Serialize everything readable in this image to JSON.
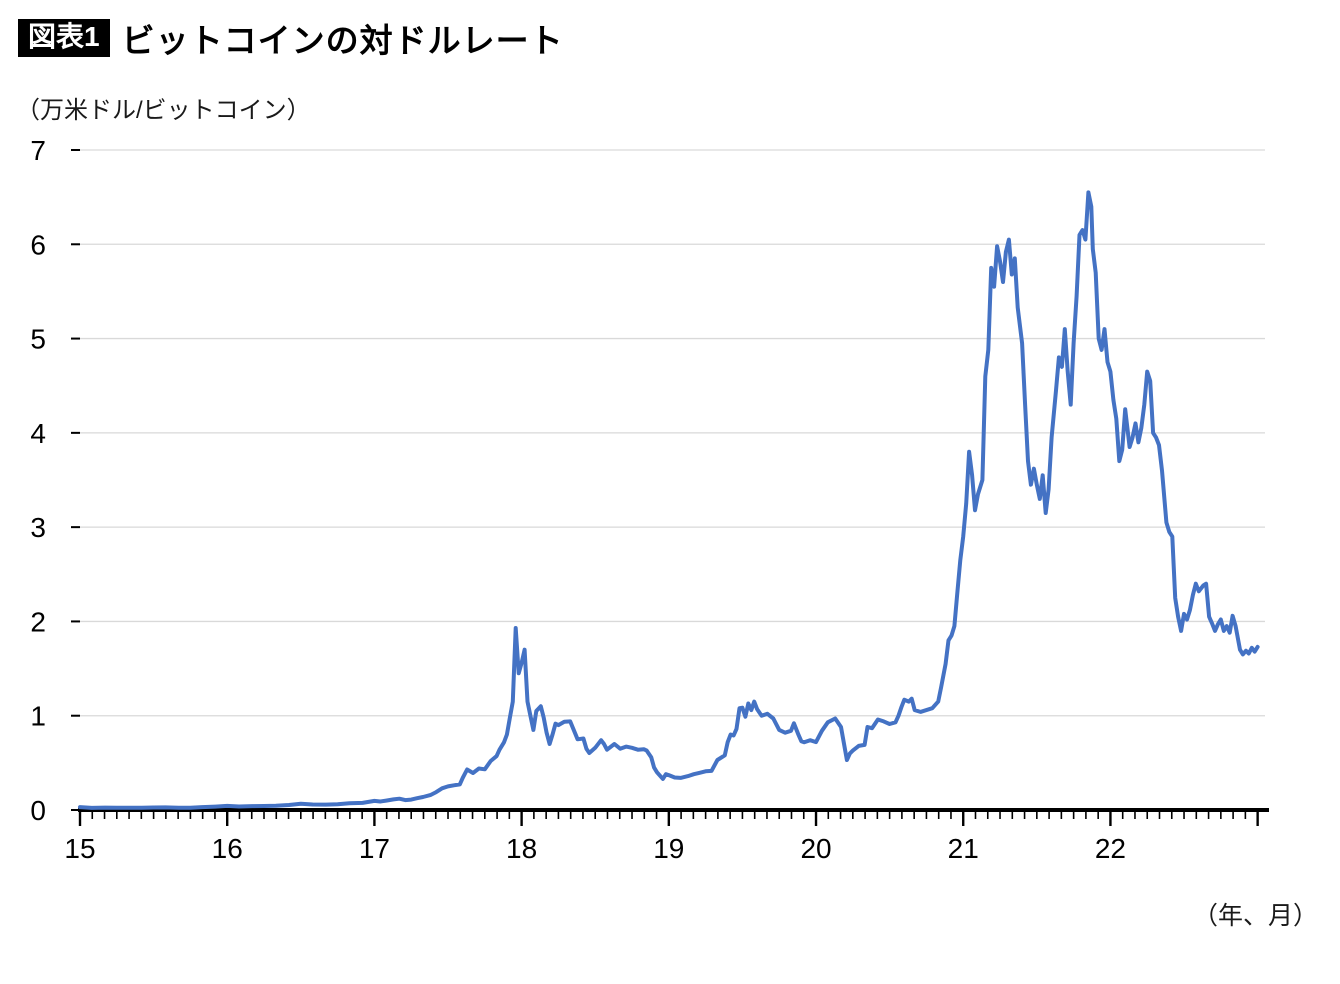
{
  "header": {
    "badge": "図表1",
    "title": "ビットコインの対ドルレート"
  },
  "chart_data": {
    "type": "line",
    "title": "ビットコインの対ドルレート",
    "unit_label": "（万米ドル/ビットコイン）",
    "xlabel": "（年、月）",
    "ylabel": "万米ドル/ビットコイン",
    "legend": "none",
    "grid": "horizontal",
    "line_color": "#4472C4",
    "grid_color": "#d9d9d9",
    "axis_color": "#000000",
    "xlim": [
      15,
      23.05
    ],
    "ylim": [
      0,
      7
    ],
    "x_ticks": [
      15,
      16,
      17,
      18,
      19,
      20,
      21,
      22
    ],
    "y_ticks": [
      0,
      1,
      2,
      3,
      4,
      5,
      6,
      7
    ],
    "points": [
      [
        15.0,
        0.031
      ],
      [
        15.08,
        0.022
      ],
      [
        15.17,
        0.025
      ],
      [
        15.25,
        0.024
      ],
      [
        15.33,
        0.023
      ],
      [
        15.42,
        0.024
      ],
      [
        15.5,
        0.026
      ],
      [
        15.58,
        0.028
      ],
      [
        15.67,
        0.023
      ],
      [
        15.75,
        0.024
      ],
      [
        15.83,
        0.031
      ],
      [
        15.92,
        0.036
      ],
      [
        16.0,
        0.043
      ],
      [
        16.08,
        0.037
      ],
      [
        16.17,
        0.041
      ],
      [
        16.25,
        0.042
      ],
      [
        16.33,
        0.045
      ],
      [
        16.42,
        0.053
      ],
      [
        16.5,
        0.067
      ],
      [
        16.58,
        0.058
      ],
      [
        16.67,
        0.057
      ],
      [
        16.75,
        0.061
      ],
      [
        16.83,
        0.071
      ],
      [
        16.92,
        0.075
      ],
      [
        17.0,
        0.096
      ],
      [
        17.04,
        0.09
      ],
      [
        17.08,
        0.1
      ],
      [
        17.13,
        0.112
      ],
      [
        17.17,
        0.12
      ],
      [
        17.21,
        0.105
      ],
      [
        17.25,
        0.11
      ],
      [
        17.29,
        0.125
      ],
      [
        17.33,
        0.138
      ],
      [
        17.38,
        0.158
      ],
      [
        17.42,
        0.19
      ],
      [
        17.46,
        0.23
      ],
      [
        17.5,
        0.25
      ],
      [
        17.54,
        0.262
      ],
      [
        17.58,
        0.272
      ],
      [
        17.6,
        0.34
      ],
      [
        17.63,
        0.43
      ],
      [
        17.67,
        0.392
      ],
      [
        17.71,
        0.44
      ],
      [
        17.75,
        0.432
      ],
      [
        17.79,
        0.52
      ],
      [
        17.83,
        0.572
      ],
      [
        17.85,
        0.64
      ],
      [
        17.88,
        0.718
      ],
      [
        17.9,
        0.8
      ],
      [
        17.92,
        0.975
      ],
      [
        17.94,
        1.15
      ],
      [
        17.96,
        1.93
      ],
      [
        17.98,
        1.45
      ],
      [
        18.0,
        1.56
      ],
      [
        18.02,
        1.7
      ],
      [
        18.04,
        1.15
      ],
      [
        18.06,
        1.0
      ],
      [
        18.08,
        0.85
      ],
      [
        18.1,
        1.05
      ],
      [
        18.13,
        1.1
      ],
      [
        18.15,
        0.98
      ],
      [
        18.17,
        0.82
      ],
      [
        18.19,
        0.7
      ],
      [
        18.21,
        0.8
      ],
      [
        18.23,
        0.915
      ],
      [
        18.25,
        0.9
      ],
      [
        18.29,
        0.935
      ],
      [
        18.33,
        0.94
      ],
      [
        18.38,
        0.75
      ],
      [
        18.42,
        0.758
      ],
      [
        18.44,
        0.65
      ],
      [
        18.46,
        0.605
      ],
      [
        18.5,
        0.66
      ],
      [
        18.54,
        0.74
      ],
      [
        18.56,
        0.7
      ],
      [
        18.58,
        0.64
      ],
      [
        18.63,
        0.7
      ],
      [
        18.67,
        0.65
      ],
      [
        18.71,
        0.672
      ],
      [
        18.75,
        0.66
      ],
      [
        18.79,
        0.64
      ],
      [
        18.83,
        0.645
      ],
      [
        18.85,
        0.63
      ],
      [
        18.88,
        0.56
      ],
      [
        18.9,
        0.45
      ],
      [
        18.92,
        0.4
      ],
      [
        18.96,
        0.33
      ],
      [
        18.98,
        0.38
      ],
      [
        19.0,
        0.37
      ],
      [
        19.04,
        0.345
      ],
      [
        19.08,
        0.34
      ],
      [
        19.13,
        0.36
      ],
      [
        19.17,
        0.38
      ],
      [
        19.21,
        0.395
      ],
      [
        19.25,
        0.41
      ],
      [
        19.29,
        0.415
      ],
      [
        19.33,
        0.53
      ],
      [
        19.38,
        0.58
      ],
      [
        19.4,
        0.72
      ],
      [
        19.42,
        0.8
      ],
      [
        19.44,
        0.79
      ],
      [
        19.46,
        0.86
      ],
      [
        19.48,
        1.08
      ],
      [
        19.5,
        1.085
      ],
      [
        19.52,
        0.99
      ],
      [
        19.54,
        1.13
      ],
      [
        19.56,
        1.06
      ],
      [
        19.58,
        1.15
      ],
      [
        19.6,
        1.07
      ],
      [
        19.63,
        1.0
      ],
      [
        19.67,
        1.02
      ],
      [
        19.71,
        0.97
      ],
      [
        19.75,
        0.85
      ],
      [
        19.79,
        0.82
      ],
      [
        19.83,
        0.84
      ],
      [
        19.85,
        0.92
      ],
      [
        19.88,
        0.8
      ],
      [
        19.9,
        0.73
      ],
      [
        19.92,
        0.718
      ],
      [
        19.96,
        0.74
      ],
      [
        20.0,
        0.72
      ],
      [
        20.04,
        0.84
      ],
      [
        20.08,
        0.93
      ],
      [
        20.13,
        0.97
      ],
      [
        20.17,
        0.88
      ],
      [
        20.21,
        0.53
      ],
      [
        20.23,
        0.6
      ],
      [
        20.25,
        0.63
      ],
      [
        20.29,
        0.68
      ],
      [
        20.33,
        0.69
      ],
      [
        20.35,
        0.88
      ],
      [
        20.38,
        0.868
      ],
      [
        20.42,
        0.96
      ],
      [
        20.46,
        0.94
      ],
      [
        20.5,
        0.912
      ],
      [
        20.54,
        0.93
      ],
      [
        20.56,
        1.0
      ],
      [
        20.58,
        1.09
      ],
      [
        20.6,
        1.17
      ],
      [
        20.63,
        1.15
      ],
      [
        20.65,
        1.18
      ],
      [
        20.67,
        1.06
      ],
      [
        20.71,
        1.04
      ],
      [
        20.75,
        1.06
      ],
      [
        20.79,
        1.08
      ],
      [
        20.83,
        1.15
      ],
      [
        20.85,
        1.3
      ],
      [
        20.88,
        1.55
      ],
      [
        20.9,
        1.8
      ],
      [
        20.92,
        1.85
      ],
      [
        20.94,
        1.95
      ],
      [
        20.96,
        2.3
      ],
      [
        20.98,
        2.65
      ],
      [
        21.0,
        2.9
      ],
      [
        21.02,
        3.25
      ],
      [
        21.04,
        3.8
      ],
      [
        21.06,
        3.55
      ],
      [
        21.08,
        3.18
      ],
      [
        21.1,
        3.35
      ],
      [
        21.13,
        3.5
      ],
      [
        21.15,
        4.6
      ],
      [
        21.17,
        4.88
      ],
      [
        21.19,
        5.75
      ],
      [
        21.21,
        5.55
      ],
      [
        21.23,
        5.98
      ],
      [
        21.25,
        5.82
      ],
      [
        21.27,
        5.6
      ],
      [
        21.29,
        5.92
      ],
      [
        21.31,
        6.05
      ],
      [
        21.33,
        5.68
      ],
      [
        21.35,
        5.85
      ],
      [
        21.37,
        5.33
      ],
      [
        21.4,
        4.95
      ],
      [
        21.42,
        4.3
      ],
      [
        21.44,
        3.7
      ],
      [
        21.46,
        3.45
      ],
      [
        21.48,
        3.62
      ],
      [
        21.5,
        3.45
      ],
      [
        21.52,
        3.3
      ],
      [
        21.54,
        3.55
      ],
      [
        21.56,
        3.15
      ],
      [
        21.58,
        3.4
      ],
      [
        21.6,
        3.95
      ],
      [
        21.63,
        4.45
      ],
      [
        21.65,
        4.8
      ],
      [
        21.67,
        4.7
      ],
      [
        21.69,
        5.1
      ],
      [
        21.71,
        4.65
      ],
      [
        21.73,
        4.3
      ],
      [
        21.75,
        4.95
      ],
      [
        21.77,
        5.45
      ],
      [
        21.79,
        6.1
      ],
      [
        21.81,
        6.15
      ],
      [
        21.83,
        6.05
      ],
      [
        21.85,
        6.55
      ],
      [
        21.87,
        6.4
      ],
      [
        21.88,
        5.95
      ],
      [
        21.9,
        5.7
      ],
      [
        21.92,
        5.0
      ],
      [
        21.94,
        4.88
      ],
      [
        21.96,
        5.1
      ],
      [
        21.98,
        4.75
      ],
      [
        22.0,
        4.65
      ],
      [
        22.02,
        4.35
      ],
      [
        22.04,
        4.15
      ],
      [
        22.06,
        3.7
      ],
      [
        22.08,
        3.82
      ],
      [
        22.1,
        4.25
      ],
      [
        22.13,
        3.85
      ],
      [
        22.15,
        3.95
      ],
      [
        22.17,
        4.1
      ],
      [
        22.19,
        3.9
      ],
      [
        22.21,
        4.05
      ],
      [
        22.23,
        4.3
      ],
      [
        22.25,
        4.65
      ],
      [
        22.27,
        4.55
      ],
      [
        22.29,
        4.0
      ],
      [
        22.31,
        3.95
      ],
      [
        22.33,
        3.87
      ],
      [
        22.35,
        3.6
      ],
      [
        22.38,
        3.05
      ],
      [
        22.4,
        2.95
      ],
      [
        22.42,
        2.9
      ],
      [
        22.44,
        2.25
      ],
      [
        22.46,
        2.05
      ],
      [
        22.48,
        1.9
      ],
      [
        22.5,
        2.08
      ],
      [
        22.52,
        2.02
      ],
      [
        22.54,
        2.12
      ],
      [
        22.56,
        2.28
      ],
      [
        22.58,
        2.4
      ],
      [
        22.6,
        2.32
      ],
      [
        22.63,
        2.38
      ],
      [
        22.65,
        2.4
      ],
      [
        22.67,
        2.05
      ],
      [
        22.69,
        1.98
      ],
      [
        22.71,
        1.9
      ],
      [
        22.73,
        1.97
      ],
      [
        22.75,
        2.02
      ],
      [
        22.77,
        1.9
      ],
      [
        22.79,
        1.95
      ],
      [
        22.81,
        1.88
      ],
      [
        22.83,
        2.06
      ],
      [
        22.85,
        1.95
      ],
      [
        22.88,
        1.7
      ],
      [
        22.9,
        1.65
      ],
      [
        22.92,
        1.69
      ],
      [
        22.94,
        1.66
      ],
      [
        22.96,
        1.72
      ],
      [
        22.98,
        1.68
      ],
      [
        23.0,
        1.73
      ]
    ]
  }
}
